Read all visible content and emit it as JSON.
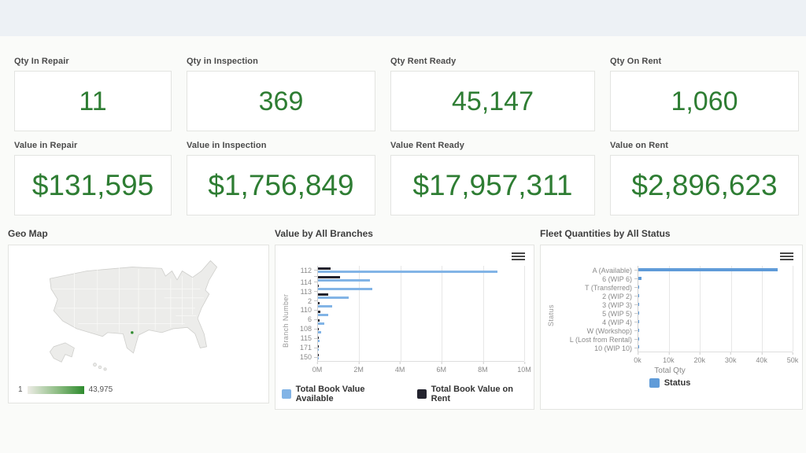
{
  "kpi_cards_qty": [
    {
      "label": "Qty In Repair",
      "value": "11"
    },
    {
      "label": "Qty in Inspection",
      "value": "369"
    },
    {
      "label": "Qty Rent Ready",
      "value": "45,147"
    },
    {
      "label": "Qty On Rent",
      "value": "1,060"
    }
  ],
  "kpi_cards_value": [
    {
      "label": "Value in Repair",
      "value": "$131,595"
    },
    {
      "label": "Value in Inspection",
      "value": "$1,756,849"
    },
    {
      "label": "Value Rent Ready",
      "value": "$17,957,311"
    },
    {
      "label": "Value on Rent",
      "value": "$2,896,623"
    }
  ],
  "geo": {
    "title": "Geo Map",
    "legend_min": "1",
    "legend_max": "43,975",
    "map_fill": "#ececea",
    "legend_gradient_end": "#2e8b2e"
  },
  "chart_data": [
    {
      "type": "bar",
      "orientation": "horizontal",
      "title": "Value by All Branches",
      "ylabel": "Branch Number",
      "xlabel": "",
      "categories": [
        "112",
        "",
        "114",
        "113",
        "2",
        "110",
        "6",
        "108",
        "115",
        "171",
        "150"
      ],
      "series": [
        {
          "name": "Total Book Value Available",
          "color": "#82b4e6",
          "values": [
            8700000,
            2530000,
            2650000,
            1480000,
            680000,
            490000,
            300000,
            150000,
            80000,
            50000,
            30000
          ]
        },
        {
          "name": "Total Book Value on Rent",
          "color": "#23232e",
          "values": [
            600000,
            1050000,
            50000,
            500000,
            80000,
            120000,
            80000,
            30000,
            20000,
            10000,
            10000
          ]
        }
      ],
      "x_ticks": [
        "0M",
        "2M",
        "4M",
        "6M",
        "8M",
        "10M"
      ],
      "xlim": [
        0,
        10000000
      ],
      "grid": true,
      "legend_position": "bottom"
    },
    {
      "type": "bar",
      "orientation": "horizontal",
      "title": "Fleet Quantities by All Status",
      "ylabel": "Status",
      "xlabel": "Total Qty",
      "categories": [
        "A (Available)",
        "6 (WIP 6)",
        "T (Transferred)",
        "2 (WIP 2)",
        "3 (WIP 3)",
        "5 (WIP 5)",
        "4 (WIP 4)",
        "W (Workshop)",
        "L (Lost from Rental)",
        "10 (WIP 10)"
      ],
      "series": [
        {
          "name": "Status",
          "color": "#5f9bd8",
          "values": [
            45147,
            900,
            150,
            120,
            100,
            80,
            60,
            40,
            20,
            10
          ]
        }
      ],
      "x_ticks": [
        "0k",
        "10k",
        "20k",
        "30k",
        "40k",
        "50k"
      ],
      "xlim": [
        0,
        50000
      ],
      "grid": true,
      "legend_position": "bottom"
    }
  ],
  "colors": {
    "kpi_value_green": "#2e7d33",
    "topbar": "#edf1f5",
    "page_bg": "#fafbf9",
    "bar_blue": "#82b4e6",
    "bar_dark": "#23232e",
    "fleet_blue": "#5f9bd8"
  }
}
